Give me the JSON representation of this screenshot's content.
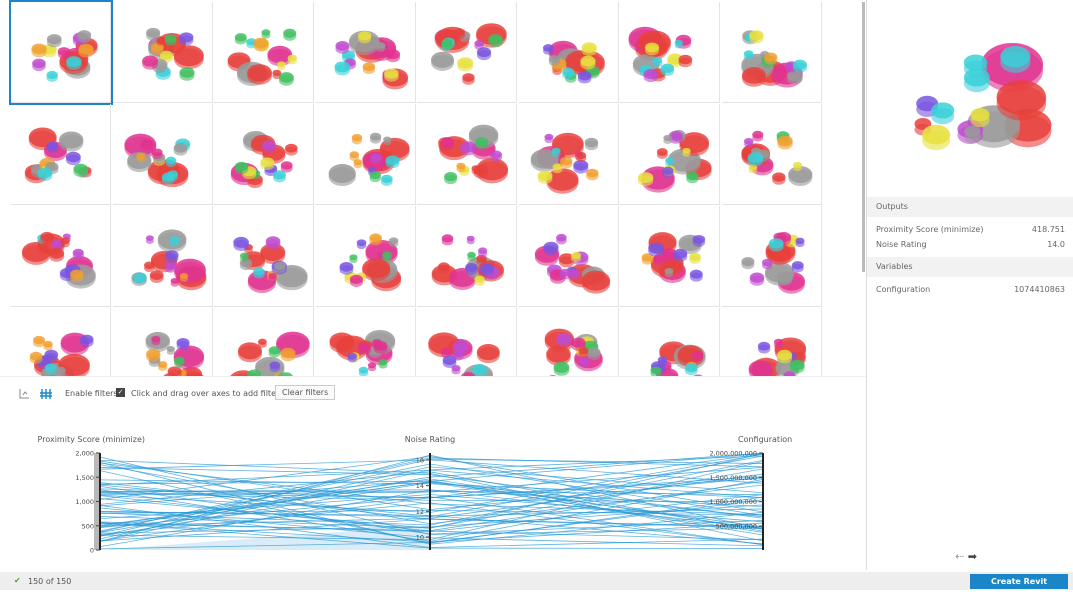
{
  "toolbar": {
    "enable_filters": "Enable filters",
    "hint": "Click and drag over axes to add filters",
    "clear_button": "Clear filters"
  },
  "parallel_plot": {
    "axes": [
      {
        "title": "Proximity Score (minimize)",
        "ticks": [
          "2,000",
          "1,500",
          "1,000",
          "500",
          "0"
        ]
      },
      {
        "title": "Noise Rating",
        "ticks": [
          "16",
          "14",
          "12",
          "10"
        ]
      },
      {
        "title": "Configuration",
        "ticks": [
          "2,000,000,000",
          "1,500,000,000",
          "1,000,000,000",
          "500,000,000"
        ]
      }
    ]
  },
  "details": {
    "outputs_header": "Outputs",
    "outputs": [
      {
        "label": "Proximity Score (minimize)",
        "value": "418.751"
      },
      {
        "label": "Noise Rating",
        "value": "14.0"
      }
    ],
    "variables_header": "Variables",
    "variables": [
      {
        "label": "Configuration",
        "value": "1074410863"
      }
    ]
  },
  "status": "150 of 150",
  "create_button": "Create Revit Elements"
}
